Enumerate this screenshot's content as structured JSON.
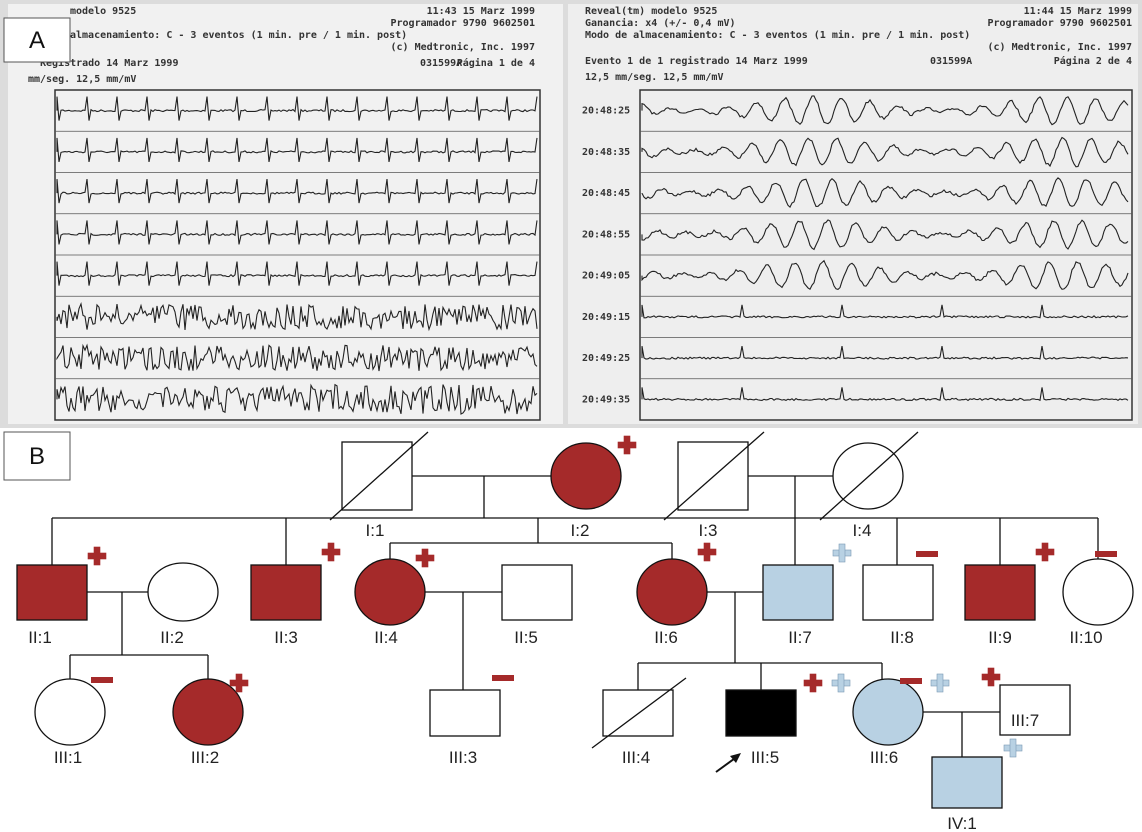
{
  "panels": {
    "A": "A",
    "B": "B"
  },
  "ecg": {
    "left_header": [
      "modelo 9525",
      "11:43 15 Marz 1999",
      "Programador 9790 9602501",
      "almacenamiento: C - 3 eventos (1 min. pre / 1 min. post)",
      "(c) Medtronic, Inc. 1997",
      "Registrado 14 Marz 1999",
      "031599A",
      "Página 1 de 4",
      "mm/seg. 12,5 mm/mV"
    ],
    "right_header": [
      "Reveal(tm) modelo 9525",
      "11:44 15 Marz 1999",
      "Ganancia: x4 (+/- 0,4 mV)",
      "Programador 9790 9602501",
      "Modo de almacenamiento: C - 3 eventos (1 min. pre / 1 min. post)",
      "(c) Medtronic, Inc. 1997",
      "Evento 1 de 1 registrado 14 Marz 1999",
      "031599A",
      "Página 2 de 4",
      "12,5 mm/seg. 12,5 mm/mV"
    ],
    "right_times": [
      "20:48:25",
      "20:48:35",
      "20:48:45",
      "20:48:55",
      "20:49:05",
      "20:49:15",
      "20:49:25",
      "20:49:35"
    ]
  },
  "pedigree": {
    "labels": [
      "I:1",
      "I:2",
      "I:3",
      "I:4",
      "II:1",
      "II:2",
      "II:3",
      "II:4",
      "II:5",
      "II:6",
      "II:7",
      "II:8",
      "II:9",
      "II:10",
      "III:1",
      "III:2",
      "III:3",
      "III:4",
      "III:5",
      "III:6",
      "III:7",
      "IV:1"
    ]
  }
}
